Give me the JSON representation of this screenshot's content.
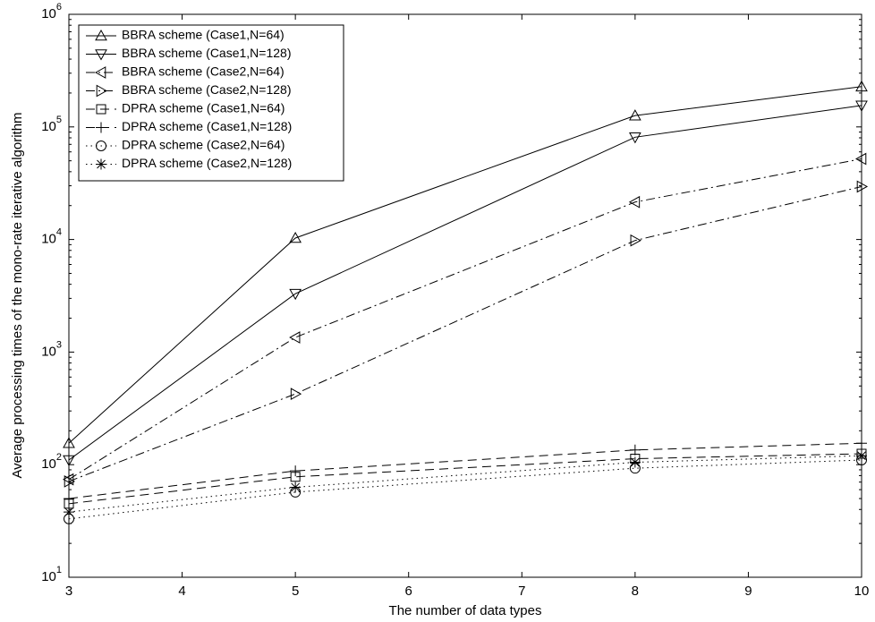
{
  "chart_data": {
    "type": "line",
    "xlabel": "The number of data types",
    "ylabel": "Average processing times of the mono-rate iterative algorithm",
    "x": [
      3,
      5,
      8,
      10
    ],
    "xlim": [
      3,
      10
    ],
    "xticks": [
      3,
      4,
      5,
      6,
      7,
      8,
      9,
      10
    ],
    "ylim": [
      10,
      1000000
    ],
    "log_y": true,
    "yticks": [
      {
        "value": 10,
        "label": "10",
        "exponent": "1"
      },
      {
        "value": 100,
        "label": "10",
        "exponent": "2"
      },
      {
        "value": 1000,
        "label": "10",
        "exponent": "3"
      },
      {
        "value": 10000,
        "label": "10",
        "exponent": "4"
      },
      {
        "value": 100000,
        "label": "10",
        "exponent": "5"
      },
      {
        "value": 1000000,
        "label": "10",
        "exponent": "6"
      }
    ],
    "grid": false,
    "legend": "upper left",
    "series": [
      {
        "name": "BBRA scheme (Case1,N=64)",
        "color": "#000000",
        "marker": "triangle-up",
        "dash": "solid",
        "values": [
          155,
          10300,
          126000,
          228000
        ]
      },
      {
        "name": "BBRA scheme (Case1,N=128)",
        "color": "#000000",
        "marker": "triangle-down",
        "dash": "solid",
        "values": [
          110,
          3300,
          81000,
          155000
        ]
      },
      {
        "name": "BBRA scheme (Case2,N=64)",
        "color": "#000000",
        "marker": "triangle-left",
        "dash": "dashdot",
        "values": [
          74,
          1350,
          21500,
          52000
        ]
      },
      {
        "name": "BBRA scheme (Case2,N=128)",
        "color": "#000000",
        "marker": "triangle-right",
        "dash": "dashdot",
        "values": [
          71,
          425,
          9800,
          29500
        ]
      },
      {
        "name": "DPRA scheme (Case1,N=64)",
        "color": "#000000",
        "marker": "square",
        "dash": "dashed",
        "values": [
          45,
          78,
          113,
          125
        ]
      },
      {
        "name": "DPRA scheme (Case1,N=128)",
        "color": "#000000",
        "marker": "plus",
        "dash": "dashed",
        "values": [
          50,
          88,
          135,
          155
        ]
      },
      {
        "name": "DPRA scheme (Case2,N=64)",
        "color": "#000000",
        "marker": "circle",
        "dash": "dotted",
        "values": [
          33,
          57,
          93,
          110
        ]
      },
      {
        "name": "DPRA scheme (Case2,N=128)",
        "color": "#000000",
        "marker": "star",
        "dash": "dotted",
        "values": [
          38,
          63,
          105,
          120
        ]
      }
    ]
  }
}
